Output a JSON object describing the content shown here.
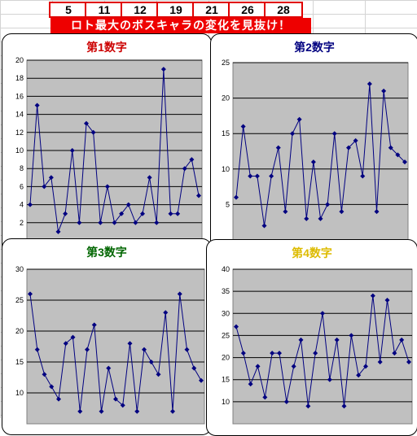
{
  "numbers": [
    "5",
    "11",
    "12",
    "19",
    "21",
    "26",
    "28"
  ],
  "banner": "ロト最大のボスキャラの変化を見抜け！",
  "colors": {
    "plot_bg": "#c0c0c0",
    "line": "#000080",
    "marker": "#000080",
    "banner": "#ee0000"
  },
  "chart_data": [
    {
      "type": "line",
      "title": "第1数字",
      "title_color": "#cc0000",
      "ylim": [
        0,
        20
      ],
      "yticks": [
        2,
        4,
        6,
        8,
        10,
        12,
        14,
        16,
        18,
        20
      ],
      "values": [
        4,
        15,
        6,
        7,
        1,
        3,
        10,
        2,
        13,
        12,
        2,
        6,
        2,
        3,
        4,
        2,
        3,
        7,
        2,
        19,
        3,
        3,
        8,
        9,
        5
      ]
    },
    {
      "type": "line",
      "title": "第2数字",
      "title_color": "#000080",
      "ylim": [
        0,
        25
      ],
      "yticks": [
        5,
        10,
        15,
        20,
        25
      ],
      "values": [
        6,
        16,
        9,
        9,
        2,
        9,
        13,
        4,
        15,
        17,
        3,
        11,
        3,
        5,
        15,
        4,
        13,
        14,
        9,
        22,
        4,
        21,
        13,
        12,
        11
      ]
    },
    {
      "type": "line",
      "title": "第3数字",
      "title_color": "#006600",
      "ylim": [
        5,
        30
      ],
      "yticks": [
        10,
        15,
        20,
        25,
        30
      ],
      "values": [
        26,
        17,
        13,
        11,
        9,
        18,
        19,
        7,
        17,
        21,
        7,
        14,
        9,
        8,
        18,
        7,
        17,
        15,
        13,
        23,
        7,
        26,
        17,
        14,
        12
      ]
    },
    {
      "type": "line",
      "title": "第4数字",
      "title_color": "#ddbb00",
      "ylim": [
        5,
        40
      ],
      "yticks": [
        10,
        15,
        20,
        25,
        30,
        35,
        40
      ],
      "values": [
        27,
        21,
        14,
        18,
        11,
        21,
        21,
        10,
        18,
        24,
        9,
        21,
        30,
        15,
        24,
        9,
        25,
        16,
        18,
        34,
        19,
        33,
        21,
        24,
        19
      ]
    }
  ]
}
